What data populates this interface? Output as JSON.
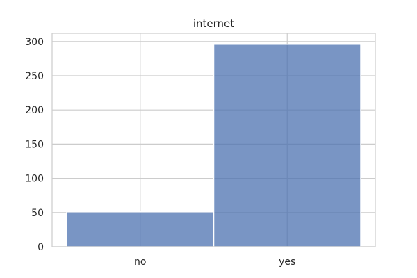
{
  "chart_data": {
    "type": "bar",
    "title": "internet",
    "xlabel": "",
    "ylabel": "",
    "categories": [
      "no",
      "yes"
    ],
    "values": [
      51,
      296
    ],
    "ylim": [
      0,
      312
    ],
    "yticks": [
      0,
      50,
      100,
      150,
      200,
      250,
      300
    ],
    "grid": true,
    "bar_color": "#4c72b0",
    "bar_opacity": 0.75,
    "grid_color": "#cccccc",
    "axis_color": "#cccccc"
  }
}
